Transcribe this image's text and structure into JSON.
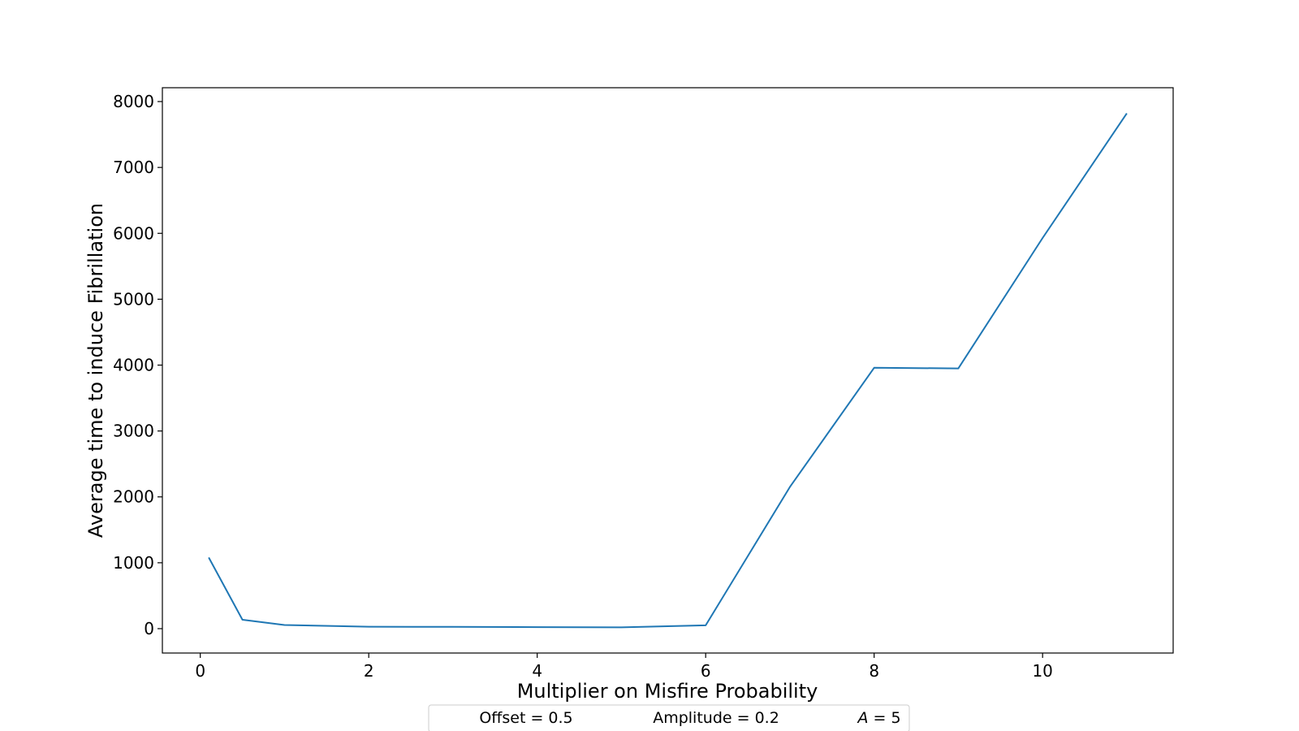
{
  "chart_data": {
    "type": "line",
    "title": "",
    "xlabel": "Multiplier on Misfire Probability",
    "ylabel": "Average time to induce Fibrillation",
    "xlim": [
      -0.45,
      11.55
    ],
    "ylim": [
      -370,
      8210
    ],
    "x_ticks": [
      "0",
      "2",
      "4",
      "6",
      "8",
      "10"
    ],
    "y_ticks": [
      "0",
      "1000",
      "2000",
      "3000",
      "4000",
      "5000",
      "6000",
      "7000",
      "8000"
    ],
    "grid": false,
    "series": [
      {
        "color": "#1f77b4",
        "x": [
          0.1,
          0.5,
          1,
          2,
          3,
          4,
          5,
          6,
          7,
          8,
          9,
          10,
          11
        ],
        "y": [
          1080,
          135,
          55,
          30,
          27,
          23,
          20,
          50,
          2150,
          3960,
          3950,
          5930,
          7820
        ]
      }
    ],
    "legend": {
      "placement": "bottom-center",
      "entries": [
        {
          "label": "Offset = 0.5"
        },
        {
          "label": "Amplitude = 0.2"
        },
        {
          "label_italic": "A",
          "label_rest": " = 5"
        }
      ]
    }
  }
}
